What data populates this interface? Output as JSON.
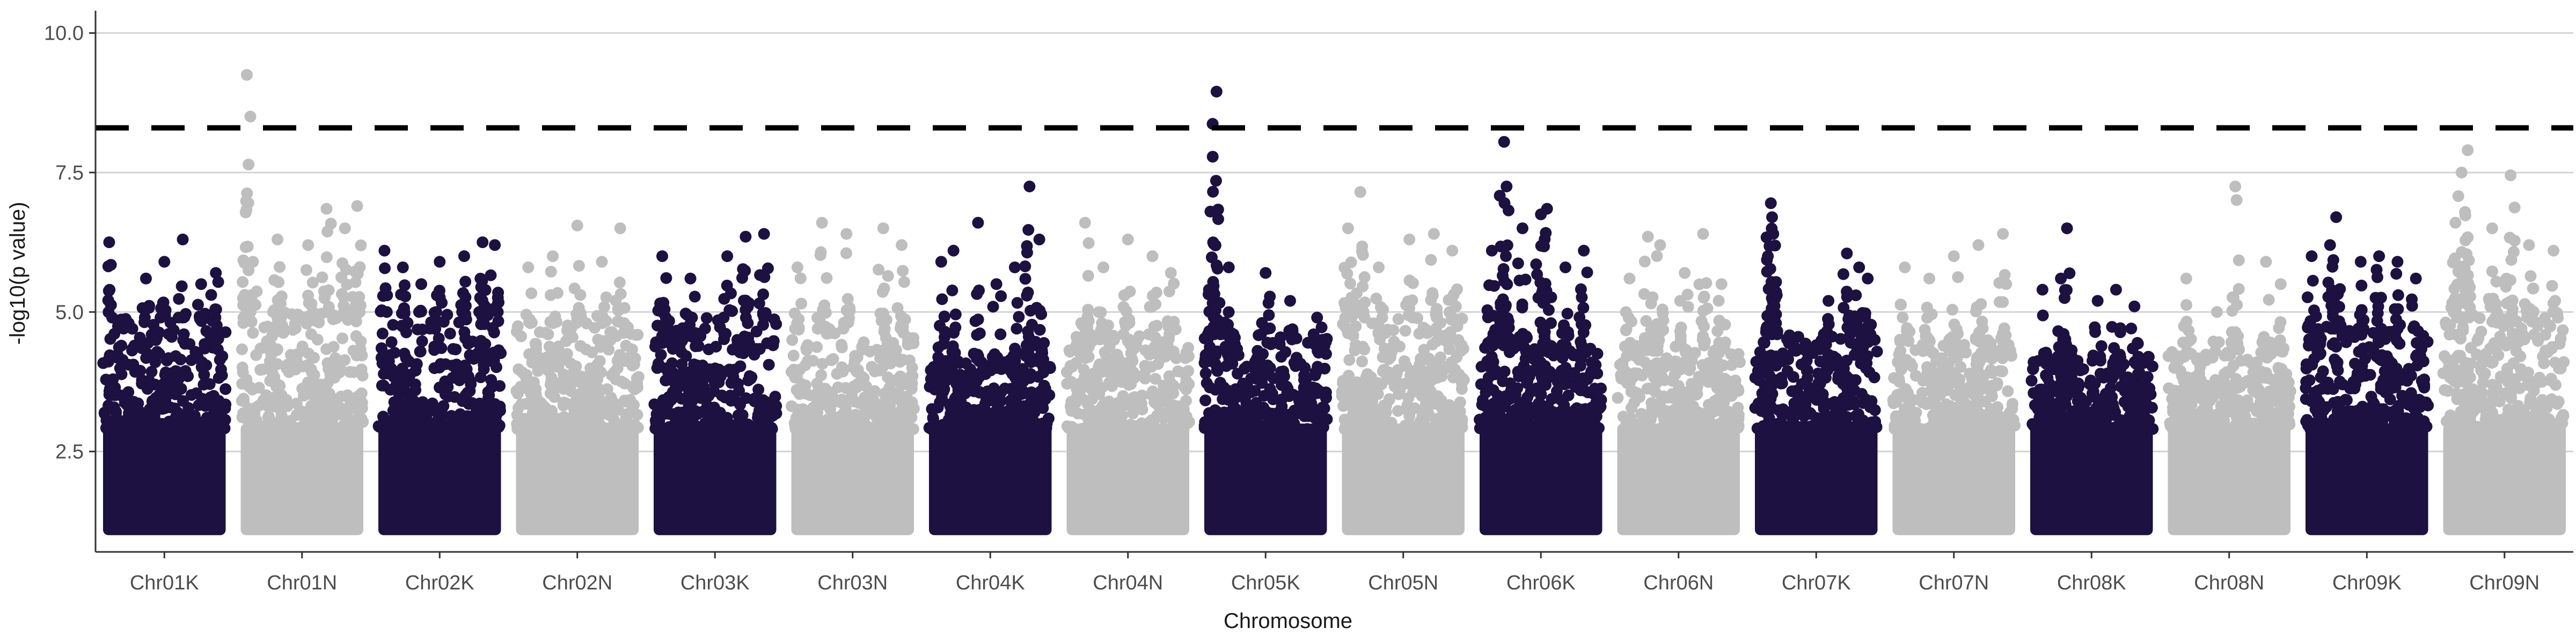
{
  "chart_data": {
    "type": "scatter",
    "title": "",
    "xlabel": "Chromosome",
    "ylabel": "-log10(p value)",
    "ylim": [
      0.7,
      10.4
    ],
    "yticks": [
      2.5,
      5.0,
      7.5,
      10.0
    ],
    "ytick_labels": [
      "2.5",
      "5.0",
      "7.5",
      "10.0"
    ],
    "grid": "horizontal major lines",
    "threshold": 8.3,
    "threshold_style": "dashed black",
    "colors": {
      "dark": "#1c1140",
      "light": "#bebebe",
      "grid": "#d3d3d3",
      "axis": "#333333",
      "threshold": "#000000"
    },
    "categories": [
      "Chr01K",
      "Chr01N",
      "Chr02K",
      "Chr02N",
      "Chr03K",
      "Chr03N",
      "Chr04K",
      "Chr04N",
      "Chr05K",
      "Chr05N",
      "Chr06K",
      "Chr06N",
      "Chr07K",
      "Chr07N",
      "Chr08K",
      "Chr08N",
      "Chr09K",
      "Chr09N"
    ],
    "series_colors": [
      "dark",
      "light",
      "dark",
      "light",
      "dark",
      "light",
      "dark",
      "light",
      "dark",
      "light",
      "dark",
      "light",
      "dark",
      "light",
      "dark",
      "light",
      "dark",
      "light"
    ],
    "chromosomes": [
      {
        "name": "Chr01K",
        "base_max": 4.9,
        "peaks": [
          [
            0.05,
            6.25
          ],
          [
            0.35,
            5.6
          ],
          [
            0.5,
            5.9
          ],
          [
            0.65,
            6.3
          ],
          [
            0.8,
            5.5
          ],
          [
            0.92,
            5.7
          ]
        ]
      },
      {
        "name": "Chr01N",
        "base_max": 5.0,
        "peaks": [
          [
            0.05,
            9.25
          ],
          [
            0.1,
            5.9
          ],
          [
            0.3,
            6.3
          ],
          [
            0.55,
            6.2
          ],
          [
            0.7,
            6.85
          ],
          [
            0.85,
            6.5
          ],
          [
            0.95,
            6.9
          ]
        ]
      },
      {
        "name": "Chr02K",
        "base_max": 5.0,
        "peaks": [
          [
            0.05,
            6.1
          ],
          [
            0.2,
            5.8
          ],
          [
            0.35,
            5.5
          ],
          [
            0.5,
            5.9
          ],
          [
            0.7,
            6.0
          ],
          [
            0.85,
            6.25
          ],
          [
            0.95,
            6.2
          ]
        ]
      },
      {
        "name": "Chr02N",
        "base_max": 4.8,
        "peaks": [
          [
            0.1,
            5.8
          ],
          [
            0.3,
            6.0
          ],
          [
            0.5,
            6.55
          ],
          [
            0.7,
            5.9
          ],
          [
            0.85,
            6.5
          ]
        ]
      },
      {
        "name": "Chr03K",
        "base_max": 4.9,
        "peaks": [
          [
            0.07,
            6.0
          ],
          [
            0.3,
            5.6
          ],
          [
            0.6,
            6.0
          ],
          [
            0.75,
            6.35
          ],
          [
            0.9,
            6.4
          ]
        ]
      },
      {
        "name": "Chr03N",
        "base_max": 4.7,
        "peaks": [
          [
            0.05,
            5.8
          ],
          [
            0.25,
            6.6
          ],
          [
            0.45,
            6.4
          ],
          [
            0.75,
            6.5
          ],
          [
            0.9,
            6.2
          ]
        ]
      },
      {
        "name": "Chr04K",
        "base_max": 4.1,
        "peaks": [
          [
            0.1,
            5.9
          ],
          [
            0.2,
            6.1
          ],
          [
            0.4,
            6.6
          ],
          [
            0.55,
            5.5
          ],
          [
            0.7,
            5.8
          ],
          [
            0.82,
            7.25
          ],
          [
            0.9,
            6.3
          ]
        ]
      },
      {
        "name": "Chr04N",
        "base_max": 4.6,
        "peaks": [
          [
            0.15,
            6.6
          ],
          [
            0.3,
            5.8
          ],
          [
            0.5,
            6.3
          ],
          [
            0.7,
            6.0
          ],
          [
            0.85,
            5.7
          ]
        ]
      },
      {
        "name": "Chr05K",
        "base_max": 4.6,
        "peaks": [
          [
            0.05,
            6.8
          ],
          [
            0.1,
            8.95
          ],
          [
            0.2,
            5.8
          ],
          [
            0.5,
            5.7
          ],
          [
            0.7,
            5.2
          ],
          [
            0.92,
            4.9
          ]
        ]
      },
      {
        "name": "Chr05N",
        "base_max": 4.9,
        "peaks": [
          [
            0.05,
            6.5
          ],
          [
            0.15,
            7.15
          ],
          [
            0.3,
            5.8
          ],
          [
            0.55,
            6.3
          ],
          [
            0.75,
            6.4
          ],
          [
            0.9,
            6.1
          ]
        ]
      },
      {
        "name": "Chr06K",
        "base_max": 4.4,
        "peaks": [
          [
            0.1,
            6.1
          ],
          [
            0.2,
            8.05
          ],
          [
            0.22,
            7.25
          ],
          [
            0.35,
            6.5
          ],
          [
            0.5,
            6.75
          ],
          [
            0.55,
            6.85
          ],
          [
            0.7,
            5.8
          ],
          [
            0.85,
            6.1
          ]
        ]
      },
      {
        "name": "Chr06N",
        "base_max": 4.4,
        "peaks": [
          [
            0.1,
            5.6
          ],
          [
            0.25,
            6.35
          ],
          [
            0.35,
            6.2
          ],
          [
            0.55,
            5.7
          ],
          [
            0.7,
            6.4
          ],
          [
            0.85,
            5.5
          ]
        ]
      },
      {
        "name": "Chr07K",
        "base_max": 4.6,
        "peaks": [
          [
            0.13,
            6.95
          ],
          [
            0.14,
            6.7
          ],
          [
            0.15,
            6.4
          ],
          [
            0.6,
            5.2
          ],
          [
            0.75,
            6.05
          ],
          [
            0.85,
            5.8
          ],
          [
            0.92,
            5.6
          ]
        ]
      },
      {
        "name": "Chr07N",
        "base_max": 4.5,
        "peaks": [
          [
            0.1,
            5.8
          ],
          [
            0.3,
            5.6
          ],
          [
            0.5,
            6.0
          ],
          [
            0.7,
            6.2
          ],
          [
            0.9,
            6.4
          ]
        ]
      },
      {
        "name": "Chr08K",
        "base_max": 4.2,
        "peaks": [
          [
            0.1,
            5.4
          ],
          [
            0.25,
            5.6
          ],
          [
            0.3,
            6.5
          ],
          [
            0.55,
            5.2
          ],
          [
            0.7,
            5.4
          ],
          [
            0.85,
            5.1
          ]
        ]
      },
      {
        "name": "Chr08N",
        "base_max": 4.3,
        "peaks": [
          [
            0.15,
            5.6
          ],
          [
            0.4,
            5.0
          ],
          [
            0.55,
            7.25
          ],
          [
            0.8,
            5.9
          ],
          [
            0.92,
            5.5
          ]
        ]
      },
      {
        "name": "Chr09K",
        "base_max": 4.7,
        "peaks": [
          [
            0.05,
            6.0
          ],
          [
            0.2,
            6.2
          ],
          [
            0.25,
            6.7
          ],
          [
            0.45,
            5.9
          ],
          [
            0.6,
            6.0
          ],
          [
            0.75,
            5.9
          ],
          [
            0.9,
            5.6
          ]
        ]
      },
      {
        "name": "Chr09N",
        "base_max": 4.9,
        "peaks": [
          [
            0.1,
            6.6
          ],
          [
            0.15,
            7.5
          ],
          [
            0.2,
            7.9
          ],
          [
            0.4,
            6.5
          ],
          [
            0.55,
            7.45
          ],
          [
            0.7,
            6.2
          ],
          [
            0.9,
            6.1
          ]
        ]
      }
    ]
  }
}
